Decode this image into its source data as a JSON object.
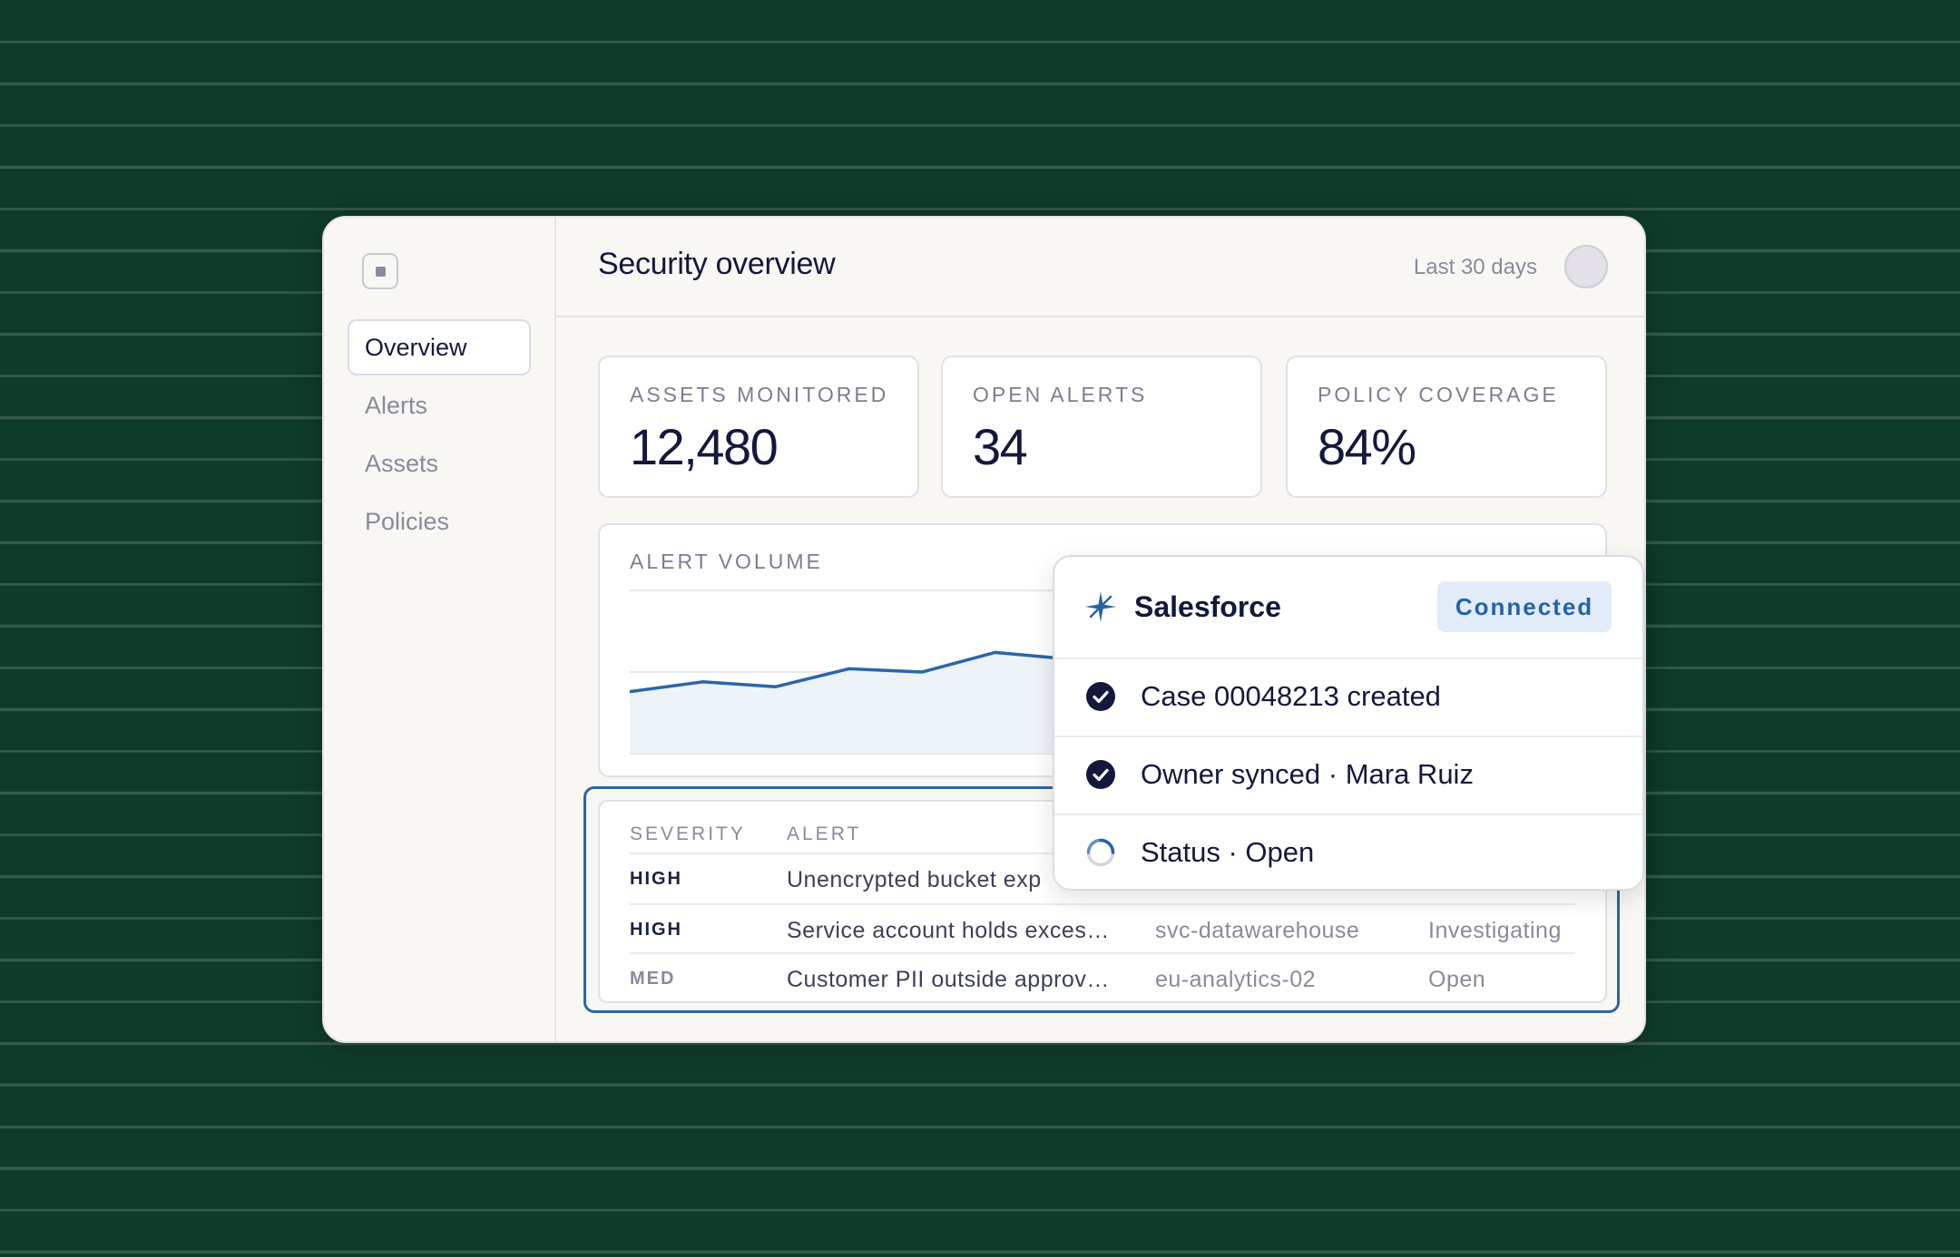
{
  "app": {
    "title": "Security overview",
    "date_range": "Last 30 days"
  },
  "sidebar": {
    "items": [
      {
        "label": "Overview",
        "active": true
      },
      {
        "label": "Alerts"
      },
      {
        "label": "Assets"
      },
      {
        "label": "Policies"
      }
    ]
  },
  "kpis": [
    {
      "label": "ASSETS MONITORED",
      "value": "12,480"
    },
    {
      "label": "OPEN ALERTS",
      "value": "34"
    },
    {
      "label": "POLICY COVERAGE",
      "value": "84%"
    }
  ],
  "chart_data": {
    "type": "area",
    "title": "ALERT VOLUME",
    "x": [
      1,
      2,
      3,
      4,
      5,
      6,
      7
    ],
    "values": [
      38,
      44,
      41,
      52,
      50,
      62,
      58
    ],
    "ylim": [
      0,
      100
    ],
    "grid": true,
    "color": "#2b66a6"
  },
  "table": {
    "headers": {
      "severity": "SEVERITY",
      "alert": "ALERT"
    },
    "rows": [
      {
        "severity": "HIGH",
        "alert": "Unencrypted bucket exp",
        "asset": "",
        "status": ""
      },
      {
        "severity": "HIGH",
        "alert": "Service account holds exces…",
        "asset": "svc-datawarehouse",
        "status": "Investigating"
      },
      {
        "severity": "MED",
        "alert": "Customer PII outside approv…",
        "asset": "eu-analytics-02",
        "status": "Open"
      }
    ]
  },
  "integration_popup": {
    "name": "Salesforce",
    "badge": "Connected",
    "icon": "salesforce-sparkle-icon",
    "accent_color": "#2463a8",
    "events": [
      {
        "text": "Case 00048213 created",
        "state": "done"
      },
      {
        "text": "Owner synced · Mara Ruiz",
        "state": "done"
      },
      {
        "text": "Status · Open",
        "state": "pending"
      }
    ]
  }
}
